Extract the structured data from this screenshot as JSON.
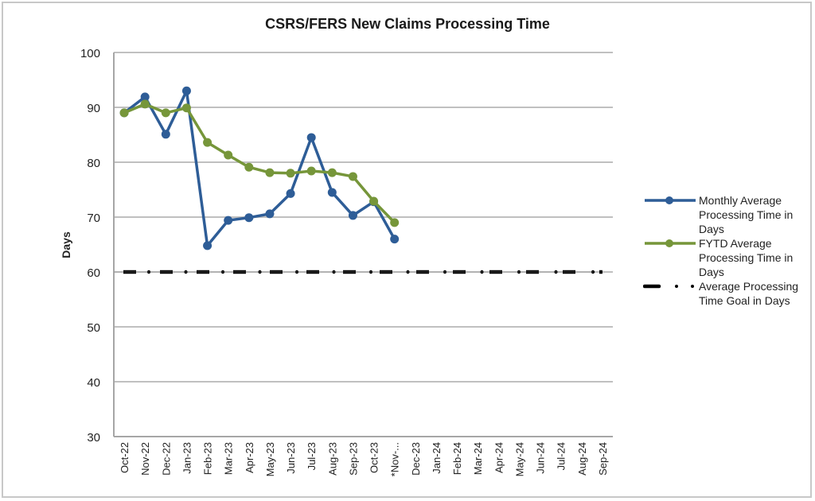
{
  "chart_data": {
    "type": "line",
    "title": "CSRS/FERS New Claims Processing Time",
    "xlabel": "",
    "ylabel": "Days",
    "ylim": [
      30,
      100
    ],
    "yticks": [
      30,
      40,
      50,
      60,
      70,
      80,
      90,
      100
    ],
    "grid": true,
    "legend_position": "right",
    "categories": [
      "Oct-22",
      "Nov-22",
      "Dec-22",
      "Jan-23",
      "Feb-23",
      "Mar-23",
      "Apr-23",
      "May-23",
      "Jun-23",
      "Jul-23",
      "Aug-23",
      "Sep-23",
      "Oct-23",
      "*Nov-...",
      "Dec-23",
      "Jan-24",
      "Feb-24",
      "Mar-24",
      "Apr-24",
      "May-24",
      "Jun-24",
      "Jul-24",
      "Aug-24",
      "Sep-24"
    ],
    "series": [
      {
        "name": "Monthly Average Processing Time in Days",
        "color": "#2e5d97",
        "style": "line-marker",
        "values": [
          89.0,
          91.9,
          85.1,
          93.0,
          64.8,
          69.4,
          69.9,
          70.6,
          74.3,
          84.5,
          74.5,
          70.3,
          72.8,
          66.0,
          null,
          null,
          null,
          null,
          null,
          null,
          null,
          null,
          null,
          null
        ]
      },
      {
        "name": "FYTD Average Processing Time in Days",
        "color": "#76963a",
        "style": "line-marker",
        "values": [
          89.0,
          90.6,
          89.0,
          89.9,
          83.6,
          81.3,
          79.1,
          78.1,
          78.0,
          78.4,
          78.1,
          77.4,
          72.9,
          69.0,
          null,
          null,
          null,
          null,
          null,
          null,
          null,
          null,
          null,
          null
        ]
      },
      {
        "name": "Average Processing Time Goal in Days",
        "color": "#000000",
        "style": "dash-dot",
        "values": [
          60,
          60,
          60,
          60,
          60,
          60,
          60,
          60,
          60,
          60,
          60,
          60,
          60,
          60,
          60,
          60,
          60,
          60,
          60,
          60,
          60,
          60,
          60,
          60
        ]
      }
    ]
  },
  "legend": {
    "items": [
      {
        "label": "Monthly Average Processing Time in Days",
        "lines": [
          "Monthly Average",
          "Processing Time in",
          "Days"
        ]
      },
      {
        "label": "FYTD Average Processing Time in Days",
        "lines": [
          "FYTD Average",
          "Processing Time in",
          "Days"
        ]
      },
      {
        "label": "Average Processing Time Goal in Days",
        "lines": [
          "Average Processing",
          "Time Goal in Days"
        ]
      }
    ]
  },
  "colors": {
    "grid": "#c0c0c0",
    "axis": "#a6a6a6",
    "text": "#222222"
  }
}
